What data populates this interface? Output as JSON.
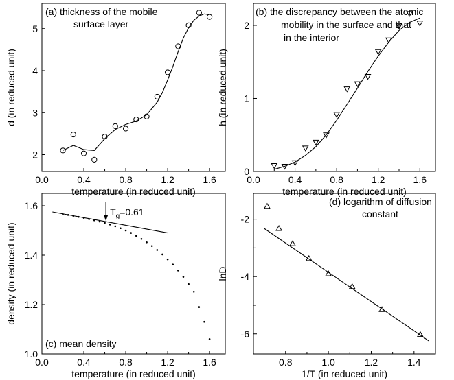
{
  "chart_data": [
    {
      "type": "scatter",
      "panel_label": "(a) thickness of the mobile",
      "panel_label_2": "surface layer",
      "xlabel": "temperature (in reduced unit)",
      "ylabel": "d (in reduced unit)",
      "xlim": [
        0.0,
        1.75
      ],
      "ylim": [
        1.6,
        5.6
      ],
      "xticks": [
        "0.0",
        "0.4",
        "0.8",
        "1.2",
        "1.6"
      ],
      "xtick_values": [
        0.0,
        0.4,
        0.8,
        1.2,
        1.6
      ],
      "yticks": [
        "2",
        "3",
        "4",
        "5"
      ],
      "ytick_values": [
        2,
        3,
        4,
        5
      ],
      "marker": "circle",
      "points": {
        "x": [
          0.2,
          0.3,
          0.4,
          0.5,
          0.6,
          0.7,
          0.8,
          0.9,
          1.0,
          1.1,
          1.2,
          1.3,
          1.4,
          1.5,
          1.6
        ],
        "y": [
          2.1,
          2.48,
          2.03,
          1.88,
          2.43,
          2.68,
          2.62,
          2.84,
          2.91,
          3.38,
          3.96,
          4.58,
          5.08,
          5.38,
          5.28
        ]
      },
      "fit_line": {
        "x": [
          0.2,
          0.3,
          0.4,
          0.5,
          0.6,
          0.7,
          0.8,
          0.9,
          1.0,
          1.1,
          1.15,
          1.2,
          1.25,
          1.3,
          1.35,
          1.4,
          1.45,
          1.5,
          1.55,
          1.6
        ],
        "y": [
          2.1,
          2.22,
          2.12,
          2.1,
          2.38,
          2.6,
          2.72,
          2.8,
          2.95,
          3.25,
          3.48,
          3.78,
          4.1,
          4.45,
          4.78,
          5.02,
          5.2,
          5.3,
          5.35,
          5.33
        ]
      }
    },
    {
      "type": "scatter",
      "panel_label": "(b) the discrepancy between the atomic",
      "panel_label_2": "mobility in the surface and that",
      "panel_label_3": "in the interior",
      "xlabel": "temperature (in reduced unit)",
      "ylabel": "h (in reduced unit)",
      "xlim": [
        0.0,
        1.75
      ],
      "ylim": [
        0.0,
        2.3
      ],
      "xticks": [
        "0.0",
        "0.4",
        "0.8",
        "1.2",
        "1.6"
      ],
      "xtick_values": [
        0.0,
        0.4,
        0.8,
        1.2,
        1.6
      ],
      "yticks": [
        "0",
        "1",
        "2"
      ],
      "ytick_values": [
        0,
        1,
        2
      ],
      "marker": "triangle-down",
      "points": {
        "x": [
          0.2,
          0.3,
          0.4,
          0.5,
          0.6,
          0.7,
          0.8,
          0.9,
          1.0,
          1.1,
          1.2,
          1.3,
          1.4,
          1.5,
          1.6
        ],
        "y": [
          0.08,
          0.07,
          0.12,
          0.32,
          0.4,
          0.5,
          0.78,
          1.13,
          1.2,
          1.3,
          1.64,
          1.8,
          1.99,
          2.16,
          2.03
        ]
      },
      "fit_line": {
        "x": [
          0.2,
          0.3,
          0.4,
          0.5,
          0.6,
          0.7,
          0.8,
          0.9,
          1.0,
          1.1,
          1.2,
          1.3,
          1.4,
          1.5,
          1.6
        ],
        "y": [
          0.03,
          0.07,
          0.13,
          0.22,
          0.34,
          0.5,
          0.7,
          0.92,
          1.14,
          1.37,
          1.58,
          1.77,
          1.93,
          2.04,
          2.1
        ]
      }
    },
    {
      "type": "scatter",
      "panel_label": "(c) mean density",
      "xlabel": "temperature (in reduced unit)",
      "ylabel": "density (in reduced unit)",
      "xlim": [
        0.0,
        1.75
      ],
      "ylim": [
        1.0,
        1.65
      ],
      "xticks": [
        "0.0",
        "0.4",
        "0.8",
        "1.2",
        "1.6"
      ],
      "xtick_values": [
        0.0,
        0.4,
        0.8,
        1.2,
        1.6
      ],
      "yticks": [
        "1.0",
        "1.2",
        "1.4",
        "1.6"
      ],
      "ytick_values": [
        1.0,
        1.2,
        1.4,
        1.6
      ],
      "marker": "dot",
      "annotation": {
        "text": "T",
        "subscript": "g",
        "suffix": "=0.61",
        "x": 0.61
      },
      "points": {
        "x": [
          0.2,
          0.25,
          0.3,
          0.35,
          0.4,
          0.45,
          0.5,
          0.55,
          0.6,
          0.65,
          0.7,
          0.75,
          0.8,
          0.85,
          0.9,
          0.95,
          1.0,
          1.05,
          1.1,
          1.15,
          1.2,
          1.25,
          1.3,
          1.35,
          1.4,
          1.45,
          1.5,
          1.55,
          1.6
        ],
        "y": [
          1.566,
          1.563,
          1.559,
          1.555,
          1.551,
          1.546,
          1.541,
          1.536,
          1.531,
          1.524,
          1.517,
          1.509,
          1.5,
          1.49,
          1.478,
          1.466,
          1.452,
          1.437,
          1.421,
          1.403,
          1.383,
          1.362,
          1.338,
          1.312,
          1.283,
          1.252,
          1.19,
          1.13,
          1.06
        ]
      },
      "fit_line": {
        "x": [
          0.1,
          1.2
        ],
        "y": [
          1.575,
          1.49
        ]
      }
    },
    {
      "type": "scatter",
      "panel_label": "(d) logarithm of diffusion",
      "panel_label_2": "constant",
      "xlabel": "1/T (in reduced unit)",
      "ylabel": "lnD",
      "xlim": [
        0.65,
        1.5
      ],
      "ylim": [
        -6.7,
        -1.1
      ],
      "xticks": [
        "0.8",
        "1.0",
        "1.2",
        "1.4"
      ],
      "xtick_values": [
        0.8,
        1.0,
        1.2,
        1.4
      ],
      "yticks": [
        "-2",
        "-4",
        "-6"
      ],
      "ytick_values": [
        -2,
        -4,
        -6
      ],
      "yminor_ticks": [
        -3,
        -5
      ],
      "marker": "triangle-up",
      "points": {
        "x": [
          0.714,
          0.769,
          0.833,
          0.909,
          1.0,
          1.111,
          1.25,
          1.429
        ],
        "y": [
          -1.55,
          -2.32,
          -2.85,
          -3.37,
          -3.9,
          -4.35,
          -5.15,
          -6.02
        ]
      },
      "fit_line": {
        "x": [
          0.7,
          1.47
        ],
        "y": [
          -2.32,
          -6.25
        ]
      }
    }
  ]
}
